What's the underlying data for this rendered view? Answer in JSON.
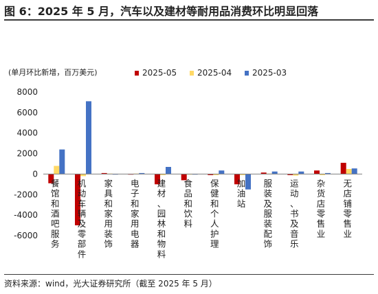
{
  "figure_title": "图 6：2025 年 5 月，汽车以及建材等耐用品消费环比明显回落",
  "source_note": "资料来源：wind，光大证券研究所（截至 2025 年 5 月）",
  "chart_data": {
    "type": "bar",
    "unit_label": "(单月环比新增，百万美元)",
    "ylim": [
      -6000,
      8000
    ],
    "yticks": [
      -6000,
      -4000,
      -2000,
      0,
      2000,
      4000,
      6000,
      8000
    ],
    "ytick_labels": [
      "-6000",
      "-4000",
      "-2000",
      "0",
      "2000",
      "4000",
      "6000",
      "8000"
    ],
    "grid": false,
    "legend_position": "top",
    "categories": [
      "餐馆和酒吧服务",
      "机动车辆及零部件",
      "家具和家用装饰",
      "电子和家用电器",
      "建材、园林和物料",
      "食品和饮料",
      "保健和个人护理",
      "加油站",
      "服装及服装配饰",
      "运动、书及音乐",
      "杂货店零售业",
      "无店铺零售业"
    ],
    "series": [
      {
        "name": "2025-05",
        "color": "#c00000",
        "values": [
          -900,
          -5000,
          100,
          -50,
          -1000,
          -600,
          -100,
          -1000,
          150,
          -100,
          350,
          1100
        ]
      },
      {
        "name": "2025-04",
        "color": "#ffd966",
        "values": [
          800,
          -200,
          50,
          50,
          -100,
          -50,
          -100,
          -100,
          50,
          -150,
          -100,
          500
        ]
      },
      {
        "name": "2025-03",
        "color": "#4472c4",
        "values": [
          2400,
          7100,
          0,
          100,
          700,
          -50,
          350,
          -1500,
          250,
          250,
          100,
          550
        ]
      }
    ]
  }
}
